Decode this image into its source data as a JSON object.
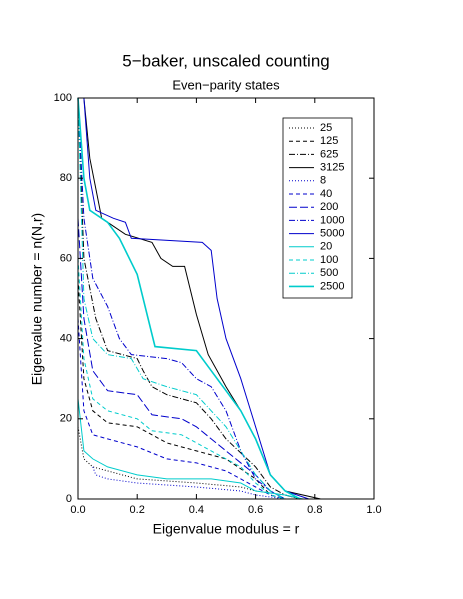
{
  "chart_data": {
    "type": "line",
    "title": "5−baker, unscaled counting",
    "subtitle": "Even−parity states",
    "x_label": "Eigenvalue modulus = r",
    "y_label": "Eigenvalue number = n(N,r)",
    "xlim": [
      0,
      1
    ],
    "ylim": [
      0,
      100
    ],
    "xticks": [
      {
        "value": 0,
        "label": "0.0"
      },
      0.2,
      0.4,
      0.6,
      0.8,
      {
        "value": 1,
        "label": "1.0"
      }
    ],
    "yticks": [
      0,
      20,
      40,
      60,
      80,
      100
    ],
    "series": [
      {
        "name": "25",
        "color": "#000000",
        "dash": "1,2",
        "x": [
          0,
          0.02,
          0.05,
          0.1,
          0.2,
          0.4,
          0.55,
          0.6,
          0.7,
          0.75
        ],
        "values": [
          18,
          10,
          8,
          7,
          5,
          4,
          3,
          2,
          1,
          0
        ]
      },
      {
        "name": "125",
        "color": "#000000",
        "dash": "4,3",
        "x": [
          0,
          0.02,
          0.05,
          0.1,
          0.2,
          0.25,
          0.3,
          0.4,
          0.5,
          0.6,
          0.65,
          0.7
        ],
        "values": [
          55,
          30,
          22,
          19,
          18,
          16,
          14,
          12,
          10,
          5,
          1,
          0
        ]
      },
      {
        "name": "625",
        "color": "#000000",
        "dash": "6,2,1,2",
        "x": [
          0,
          0.02,
          0.06,
          0.1,
          0.2,
          0.22,
          0.25,
          0.3,
          0.4,
          0.45,
          0.5,
          0.6,
          0.65,
          0.7,
          0.75
        ],
        "values": [
          100,
          60,
          45,
          37,
          35,
          32,
          28,
          26,
          24,
          20,
          15,
          8,
          3,
          1,
          0
        ]
      },
      {
        "name": "3125",
        "color": "#000000",
        "dash": "",
        "x": [
          0.02,
          0.04,
          0.08,
          0.16,
          0.25,
          0.28,
          0.32,
          0.36,
          0.4,
          0.44,
          0.5,
          0.55,
          0.6,
          0.65,
          0.7,
          0.82
        ],
        "values": [
          100,
          85,
          70,
          66,
          64,
          60,
          58,
          58,
          46,
          36,
          28,
          22,
          15,
          6,
          2,
          0
        ]
      },
      {
        "name": "8",
        "color": "#0000cc",
        "dash": "1,2",
        "x": [
          0.05,
          0.06,
          0.1,
          0.2,
          0.4,
          0.55,
          0.6,
          0.7
        ],
        "values": [
          8,
          6,
          5,
          4,
          3,
          2,
          1,
          0
        ]
      },
      {
        "name": "40",
        "color": "#0000cc",
        "dash": "4,3",
        "x": [
          0,
          0.02,
          0.05,
          0.1,
          0.2,
          0.3,
          0.4,
          0.5,
          0.6,
          0.65,
          0.7
        ],
        "values": [
          45,
          22,
          16,
          15,
          13,
          10,
          9,
          7,
          3,
          1,
          0
        ]
      },
      {
        "name": "200",
        "color": "#0000cc",
        "dash": "8,3",
        "x": [
          0,
          0.02,
          0.05,
          0.1,
          0.2,
          0.25,
          0.35,
          0.4,
          0.5,
          0.6,
          0.65,
          0.7
        ],
        "values": [
          70,
          45,
          32,
          27,
          26,
          21,
          20,
          18,
          12,
          6,
          2,
          0
        ]
      },
      {
        "name": "1000",
        "color": "#0000cc",
        "dash": "6,2,1,2",
        "x": [
          0,
          0.02,
          0.05,
          0.1,
          0.14,
          0.18,
          0.3,
          0.35,
          0.4,
          0.45,
          0.5,
          0.52,
          0.55,
          0.6,
          0.65,
          0.7
        ],
        "values": [
          100,
          70,
          55,
          48,
          40,
          36,
          35,
          34,
          30,
          28,
          22,
          18,
          12,
          5,
          2,
          0
        ]
      },
      {
        "name": "5000",
        "color": "#0000cc",
        "dash": "",
        "x": [
          0.02,
          0.04,
          0.06,
          0.12,
          0.16,
          0.18,
          0.42,
          0.45,
          0.47,
          0.5,
          0.55,
          0.6,
          0.65,
          0.7,
          0.78
        ],
        "values": [
          100,
          80,
          72,
          70,
          69,
          65,
          64,
          62,
          50,
          40,
          30,
          18,
          6,
          2,
          0
        ]
      },
      {
        "name": "20",
        "color": "#00cccc",
        "dash": "",
        "x": [
          0,
          0.02,
          0.05,
          0.1,
          0.2,
          0.3,
          0.45,
          0.55,
          0.6,
          0.7,
          0.76
        ],
        "values": [
          25,
          12,
          10,
          8,
          6,
          5,
          5,
          4,
          2,
          1,
          0
        ]
      },
      {
        "name": "100",
        "color": "#00cccc",
        "dash": "4,3",
        "x": [
          0,
          0.02,
          0.05,
          0.1,
          0.2,
          0.25,
          0.35,
          0.45,
          0.55,
          0.6,
          0.65,
          0.7
        ],
        "values": [
          60,
          35,
          25,
          22,
          20,
          17,
          16,
          12,
          8,
          4,
          1,
          0
        ]
      },
      {
        "name": "500",
        "color": "#00cccc",
        "dash": "6,2,1,2",
        "x": [
          0,
          0.02,
          0.05,
          0.1,
          0.18,
          0.22,
          0.3,
          0.4,
          0.45,
          0.5,
          0.55,
          0.6,
          0.65,
          0.7
        ],
        "values": [
          100,
          50,
          40,
          36,
          35,
          30,
          28,
          26,
          22,
          18,
          12,
          6,
          2,
          0
        ]
      },
      {
        "name": "2500",
        "color": "#00cccc",
        "dash": "",
        "x": [
          0,
          0.02,
          0.04,
          0.1,
          0.14,
          0.2,
          0.26,
          0.4,
          0.45,
          0.5,
          0.55,
          0.6,
          0.65,
          0.7,
          0.75
        ],
        "values": [
          100,
          80,
          72,
          69,
          65,
          56,
          38,
          37,
          32,
          27,
          22,
          15,
          6,
          2,
          0
        ]
      }
    ]
  }
}
